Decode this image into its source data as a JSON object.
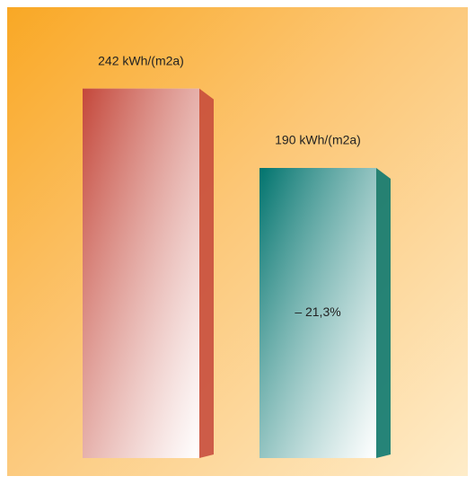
{
  "chart_data": {
    "type": "bar",
    "categories": [
      null,
      null
    ],
    "values": [
      242,
      190
    ],
    "value_labels": [
      "242 kWh/(m2a)",
      "190 kWh/(m2a)"
    ],
    "colors": [
      "#c4473a",
      "#00736d"
    ],
    "annotation": "– 21,3%"
  }
}
